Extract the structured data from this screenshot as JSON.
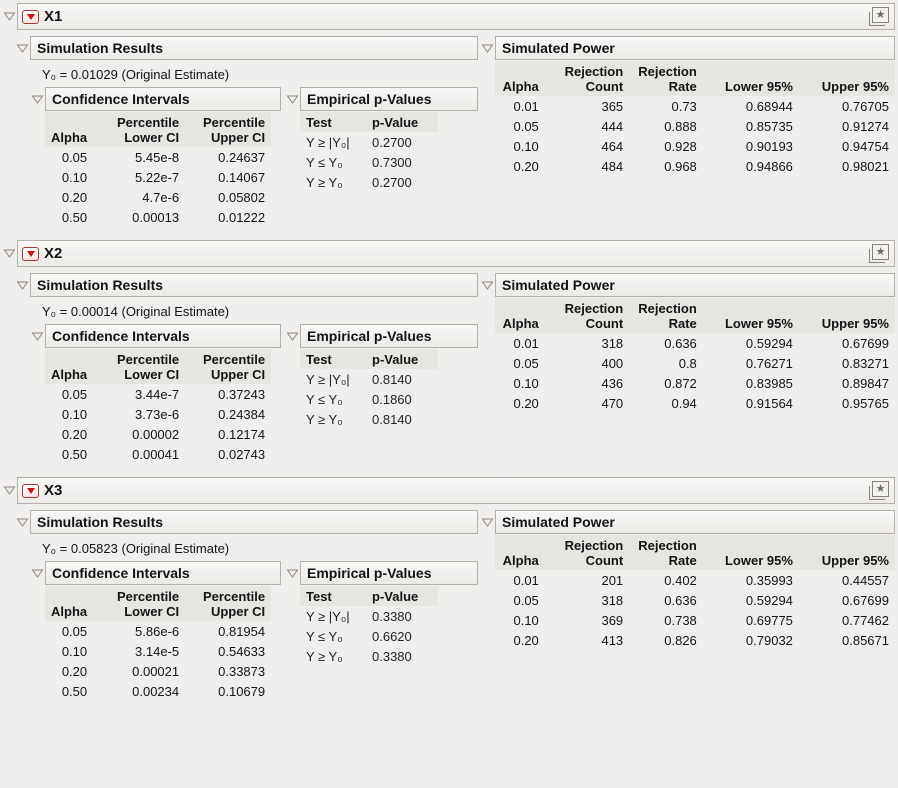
{
  "icons": {
    "star_glyph": "★",
    "disclosure": "open-outline-triangle",
    "red_triangle_menu": "red-triangle-options"
  },
  "colors": {
    "page_bg": "#f0eeec",
    "header_bar_bg": "#f1efed",
    "header_bar_border": "#b3b0ac",
    "table_header_bg": "#e7e5e2",
    "red_triangle": "#cd1212"
  },
  "labels": {
    "simulation_results": "Simulation Results",
    "confidence_intervals": "Confidence Intervals",
    "empirical_p_values": "Empirical p-Values",
    "simulated_power": "Simulated Power",
    "alpha": "Alpha",
    "percentile": "Percentile",
    "lower_ci": "Lower CI",
    "upper_ci": "Upper CI",
    "test": "Test",
    "p_value": "p-Value",
    "rejection": "Rejection",
    "count": "Count",
    "rate": "Rate",
    "lower95": "Lower 95%",
    "upper95": "Upper 95%"
  },
  "sections": [
    {
      "title": "X1",
      "original_estimate": "Y₀ = 0.01029 (Original Estimate)",
      "confidence_intervals": {
        "rows": [
          [
            "0.05",
            "5.45e-8",
            "0.24637"
          ],
          [
            "0.10",
            "5.22e-7",
            "0.14067"
          ],
          [
            "0.20",
            "4.7e-6",
            "0.05802"
          ],
          [
            "0.50",
            "0.00013",
            "0.01222"
          ]
        ]
      },
      "p_values": {
        "rows": [
          [
            "Y ≥ |Y₀|",
            "0.2700"
          ],
          [
            "Y ≤ Y₀",
            "0.7300"
          ],
          [
            "Y ≥ Y₀",
            "0.2700"
          ]
        ]
      },
      "simulated_power": {
        "rows": [
          [
            "0.01",
            "365",
            "0.73",
            "0.68944",
            "0.76705"
          ],
          [
            "0.05",
            "444",
            "0.888",
            "0.85735",
            "0.91274"
          ],
          [
            "0.10",
            "464",
            "0.928",
            "0.90193",
            "0.94754"
          ],
          [
            "0.20",
            "484",
            "0.968",
            "0.94866",
            "0.98021"
          ]
        ]
      }
    },
    {
      "title": "X2",
      "original_estimate": "Y₀ = 0.00014 (Original Estimate)",
      "confidence_intervals": {
        "rows": [
          [
            "0.05",
            "3.44e-7",
            "0.37243"
          ],
          [
            "0.10",
            "3.73e-6",
            "0.24384"
          ],
          [
            "0.20",
            "0.00002",
            "0.12174"
          ],
          [
            "0.50",
            "0.00041",
            "0.02743"
          ]
        ]
      },
      "p_values": {
        "rows": [
          [
            "Y ≥ |Y₀|",
            "0.8140"
          ],
          [
            "Y ≤ Y₀",
            "0.1860"
          ],
          [
            "Y ≥ Y₀",
            "0.8140"
          ]
        ]
      },
      "simulated_power": {
        "rows": [
          [
            "0.01",
            "318",
            "0.636",
            "0.59294",
            "0.67699"
          ],
          [
            "0.05",
            "400",
            "0.8",
            "0.76271",
            "0.83271"
          ],
          [
            "0.10",
            "436",
            "0.872",
            "0.83985",
            "0.89847"
          ],
          [
            "0.20",
            "470",
            "0.94",
            "0.91564",
            "0.95765"
          ]
        ]
      }
    },
    {
      "title": "X3",
      "original_estimate": "Y₀ = 0.05823 (Original Estimate)",
      "confidence_intervals": {
        "rows": [
          [
            "0.05",
            "5.86e-6",
            "0.81954"
          ],
          [
            "0.10",
            "3.14e-5",
            "0.54633"
          ],
          [
            "0.20",
            "0.00021",
            "0.33873"
          ],
          [
            "0.50",
            "0.00234",
            "0.10679"
          ]
        ]
      },
      "p_values": {
        "rows": [
          [
            "Y ≥ |Y₀|",
            "0.3380"
          ],
          [
            "Y ≤ Y₀",
            "0.6620"
          ],
          [
            "Y ≥ Y₀",
            "0.3380"
          ]
        ]
      },
      "simulated_power": {
        "rows": [
          [
            "0.01",
            "201",
            "0.402",
            "0.35993",
            "0.44557"
          ],
          [
            "0.05",
            "318",
            "0.636",
            "0.59294",
            "0.67699"
          ],
          [
            "0.10",
            "369",
            "0.738",
            "0.69775",
            "0.77462"
          ],
          [
            "0.20",
            "413",
            "0.826",
            "0.79032",
            "0.85671"
          ]
        ]
      }
    }
  ]
}
